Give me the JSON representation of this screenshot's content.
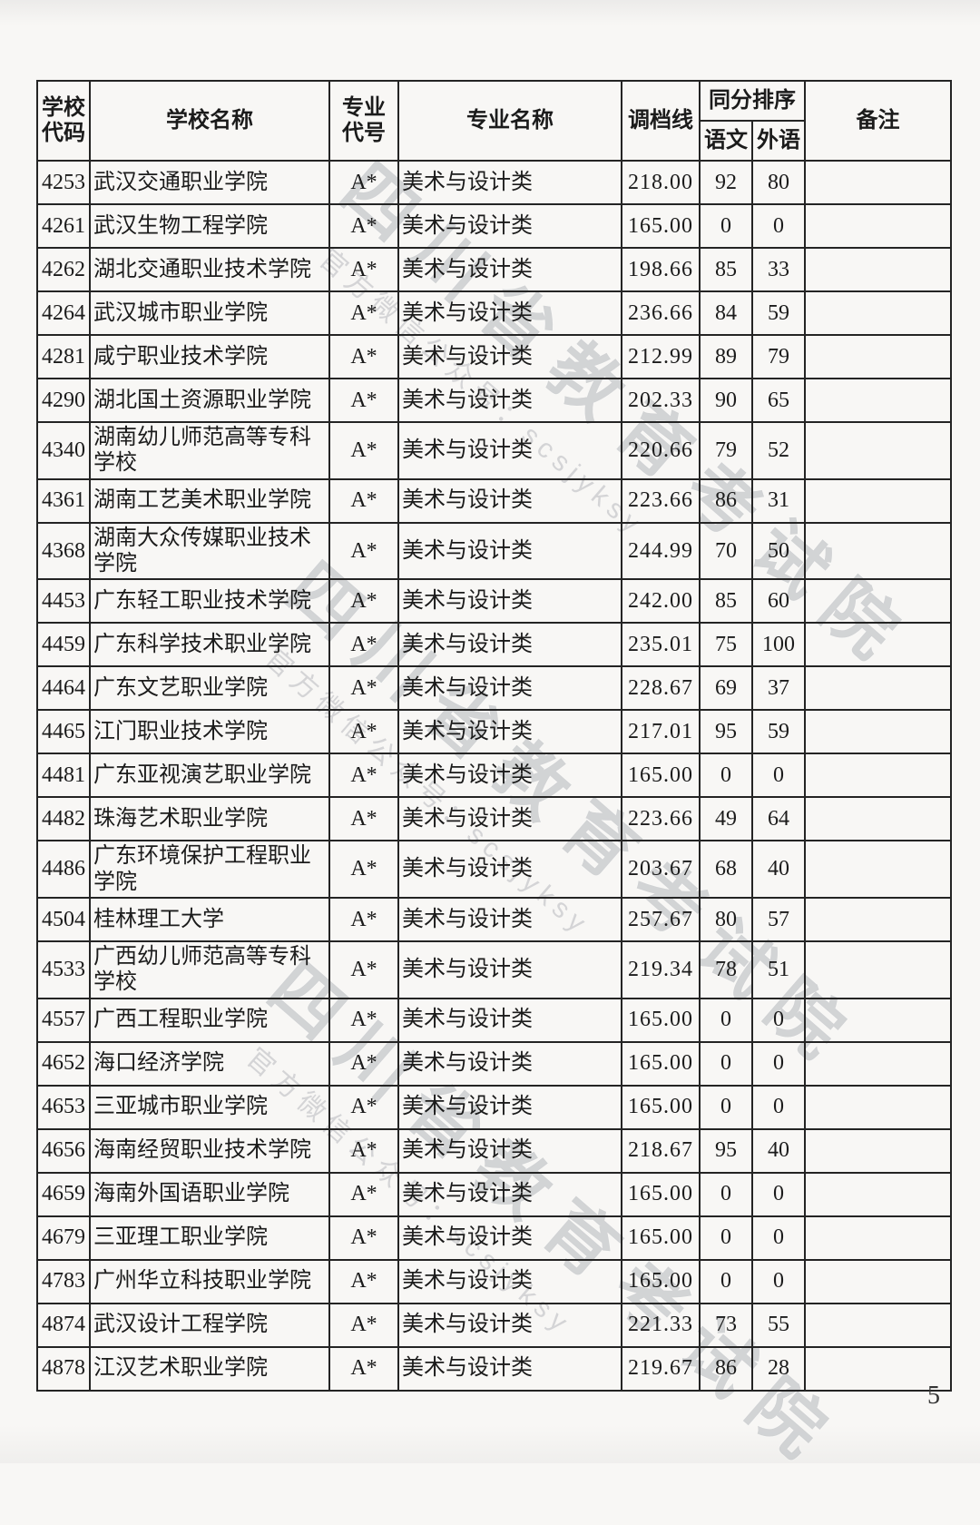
{
  "page": {
    "number": "5"
  },
  "watermark": {
    "large": "四川省教育考试院",
    "small": "官方微信公众号：scsjyksy"
  },
  "table": {
    "headers": {
      "school_code": "学校代码",
      "school_name": "学校名称",
      "major_code": "专业代号",
      "major_name": "专业名称",
      "score_line": "调档线",
      "tie_break": "同分排序",
      "chinese": "语文",
      "foreign_lang": "外语",
      "remark": "备注"
    },
    "rows": [
      {
        "code": "4253",
        "school": "武汉交通职业学院",
        "major_code": "A*",
        "major": "美术与设计类",
        "score": "218.00",
        "chinese": "92",
        "foreign": "80",
        "remark": ""
      },
      {
        "code": "4261",
        "school": "武汉生物工程学院",
        "major_code": "A*",
        "major": "美术与设计类",
        "score": "165.00",
        "chinese": "0",
        "foreign": "0",
        "remark": ""
      },
      {
        "code": "4262",
        "school": "湖北交通职业技术学院",
        "major_code": "A*",
        "major": "美术与设计类",
        "score": "198.66",
        "chinese": "85",
        "foreign": "33",
        "remark": ""
      },
      {
        "code": "4264",
        "school": "武汉城市职业学院",
        "major_code": "A*",
        "major": "美术与设计类",
        "score": "236.66",
        "chinese": "84",
        "foreign": "59",
        "remark": ""
      },
      {
        "code": "4281",
        "school": "咸宁职业技术学院",
        "major_code": "A*",
        "major": "美术与设计类",
        "score": "212.99",
        "chinese": "89",
        "foreign": "79",
        "remark": ""
      },
      {
        "code": "4290",
        "school": "湖北国土资源职业学院",
        "major_code": "A*",
        "major": "美术与设计类",
        "score": "202.33",
        "chinese": "90",
        "foreign": "65",
        "remark": ""
      },
      {
        "code": "4340",
        "school": "湖南幼儿师范高等专科学校",
        "major_code": "A*",
        "major": "美术与设计类",
        "score": "220.66",
        "chinese": "79",
        "foreign": "52",
        "remark": ""
      },
      {
        "code": "4361",
        "school": "湖南工艺美术职业学院",
        "major_code": "A*",
        "major": "美术与设计类",
        "score": "223.66",
        "chinese": "86",
        "foreign": "31",
        "remark": ""
      },
      {
        "code": "4368",
        "school": "湖南大众传媒职业技术学院",
        "major_code": "A*",
        "major": "美术与设计类",
        "score": "244.99",
        "chinese": "70",
        "foreign": "50",
        "remark": ""
      },
      {
        "code": "4453",
        "school": "广东轻工职业技术学院",
        "major_code": "A*",
        "major": "美术与设计类",
        "score": "242.00",
        "chinese": "85",
        "foreign": "60",
        "remark": ""
      },
      {
        "code": "4459",
        "school": "广东科学技术职业学院",
        "major_code": "A*",
        "major": "美术与设计类",
        "score": "235.01",
        "chinese": "75",
        "foreign": "100",
        "remark": ""
      },
      {
        "code": "4464",
        "school": "广东文艺职业学院",
        "major_code": "A*",
        "major": "美术与设计类",
        "score": "228.67",
        "chinese": "69",
        "foreign": "37",
        "remark": ""
      },
      {
        "code": "4465",
        "school": "江门职业技术学院",
        "major_code": "A*",
        "major": "美术与设计类",
        "score": "217.01",
        "chinese": "95",
        "foreign": "59",
        "remark": ""
      },
      {
        "code": "4481",
        "school": "广东亚视演艺职业学院",
        "major_code": "A*",
        "major": "美术与设计类",
        "score": "165.00",
        "chinese": "0",
        "foreign": "0",
        "remark": ""
      },
      {
        "code": "4482",
        "school": "珠海艺术职业学院",
        "major_code": "A*",
        "major": "美术与设计类",
        "score": "223.66",
        "chinese": "49",
        "foreign": "64",
        "remark": ""
      },
      {
        "code": "4486",
        "school": "广东环境保护工程职业学院",
        "major_code": "A*",
        "major": "美术与设计类",
        "score": "203.67",
        "chinese": "68",
        "foreign": "40",
        "remark": ""
      },
      {
        "code": "4504",
        "school": "桂林理工大学",
        "major_code": "A*",
        "major": "美术与设计类",
        "score": "257.67",
        "chinese": "80",
        "foreign": "57",
        "remark": ""
      },
      {
        "code": "4533",
        "school": "广西幼儿师范高等专科学校",
        "major_code": "A*",
        "major": "美术与设计类",
        "score": "219.34",
        "chinese": "78",
        "foreign": "51",
        "remark": ""
      },
      {
        "code": "4557",
        "school": "广西工程职业学院",
        "major_code": "A*",
        "major": "美术与设计类",
        "score": "165.00",
        "chinese": "0",
        "foreign": "0",
        "remark": ""
      },
      {
        "code": "4652",
        "school": "海口经济学院",
        "major_code": "A*",
        "major": "美术与设计类",
        "score": "165.00",
        "chinese": "0",
        "foreign": "0",
        "remark": ""
      },
      {
        "code": "4653",
        "school": "三亚城市职业学院",
        "major_code": "A*",
        "major": "美术与设计类",
        "score": "165.00",
        "chinese": "0",
        "foreign": "0",
        "remark": ""
      },
      {
        "code": "4656",
        "school": "海南经贸职业技术学院",
        "major_code": "A*",
        "major": "美术与设计类",
        "score": "218.67",
        "chinese": "95",
        "foreign": "40",
        "remark": ""
      },
      {
        "code": "4659",
        "school": "海南外国语职业学院",
        "major_code": "A*",
        "major": "美术与设计类",
        "score": "165.00",
        "chinese": "0",
        "foreign": "0",
        "remark": ""
      },
      {
        "code": "4679",
        "school": "三亚理工职业学院",
        "major_code": "A*",
        "major": "美术与设计类",
        "score": "165.00",
        "chinese": "0",
        "foreign": "0",
        "remark": ""
      },
      {
        "code": "4783",
        "school": "广州华立科技职业学院",
        "major_code": "A*",
        "major": "美术与设计类",
        "score": "165.00",
        "chinese": "0",
        "foreign": "0",
        "remark": ""
      },
      {
        "code": "4874",
        "school": "武汉设计工程学院",
        "major_code": "A*",
        "major": "美术与设计类",
        "score": "221.33",
        "chinese": "73",
        "foreign": "55",
        "remark": ""
      },
      {
        "code": "4878",
        "school": "江汉艺术职业学院",
        "major_code": "A*",
        "major": "美术与设计类",
        "score": "219.67",
        "chinese": "86",
        "foreign": "28",
        "remark": ""
      }
    ]
  }
}
